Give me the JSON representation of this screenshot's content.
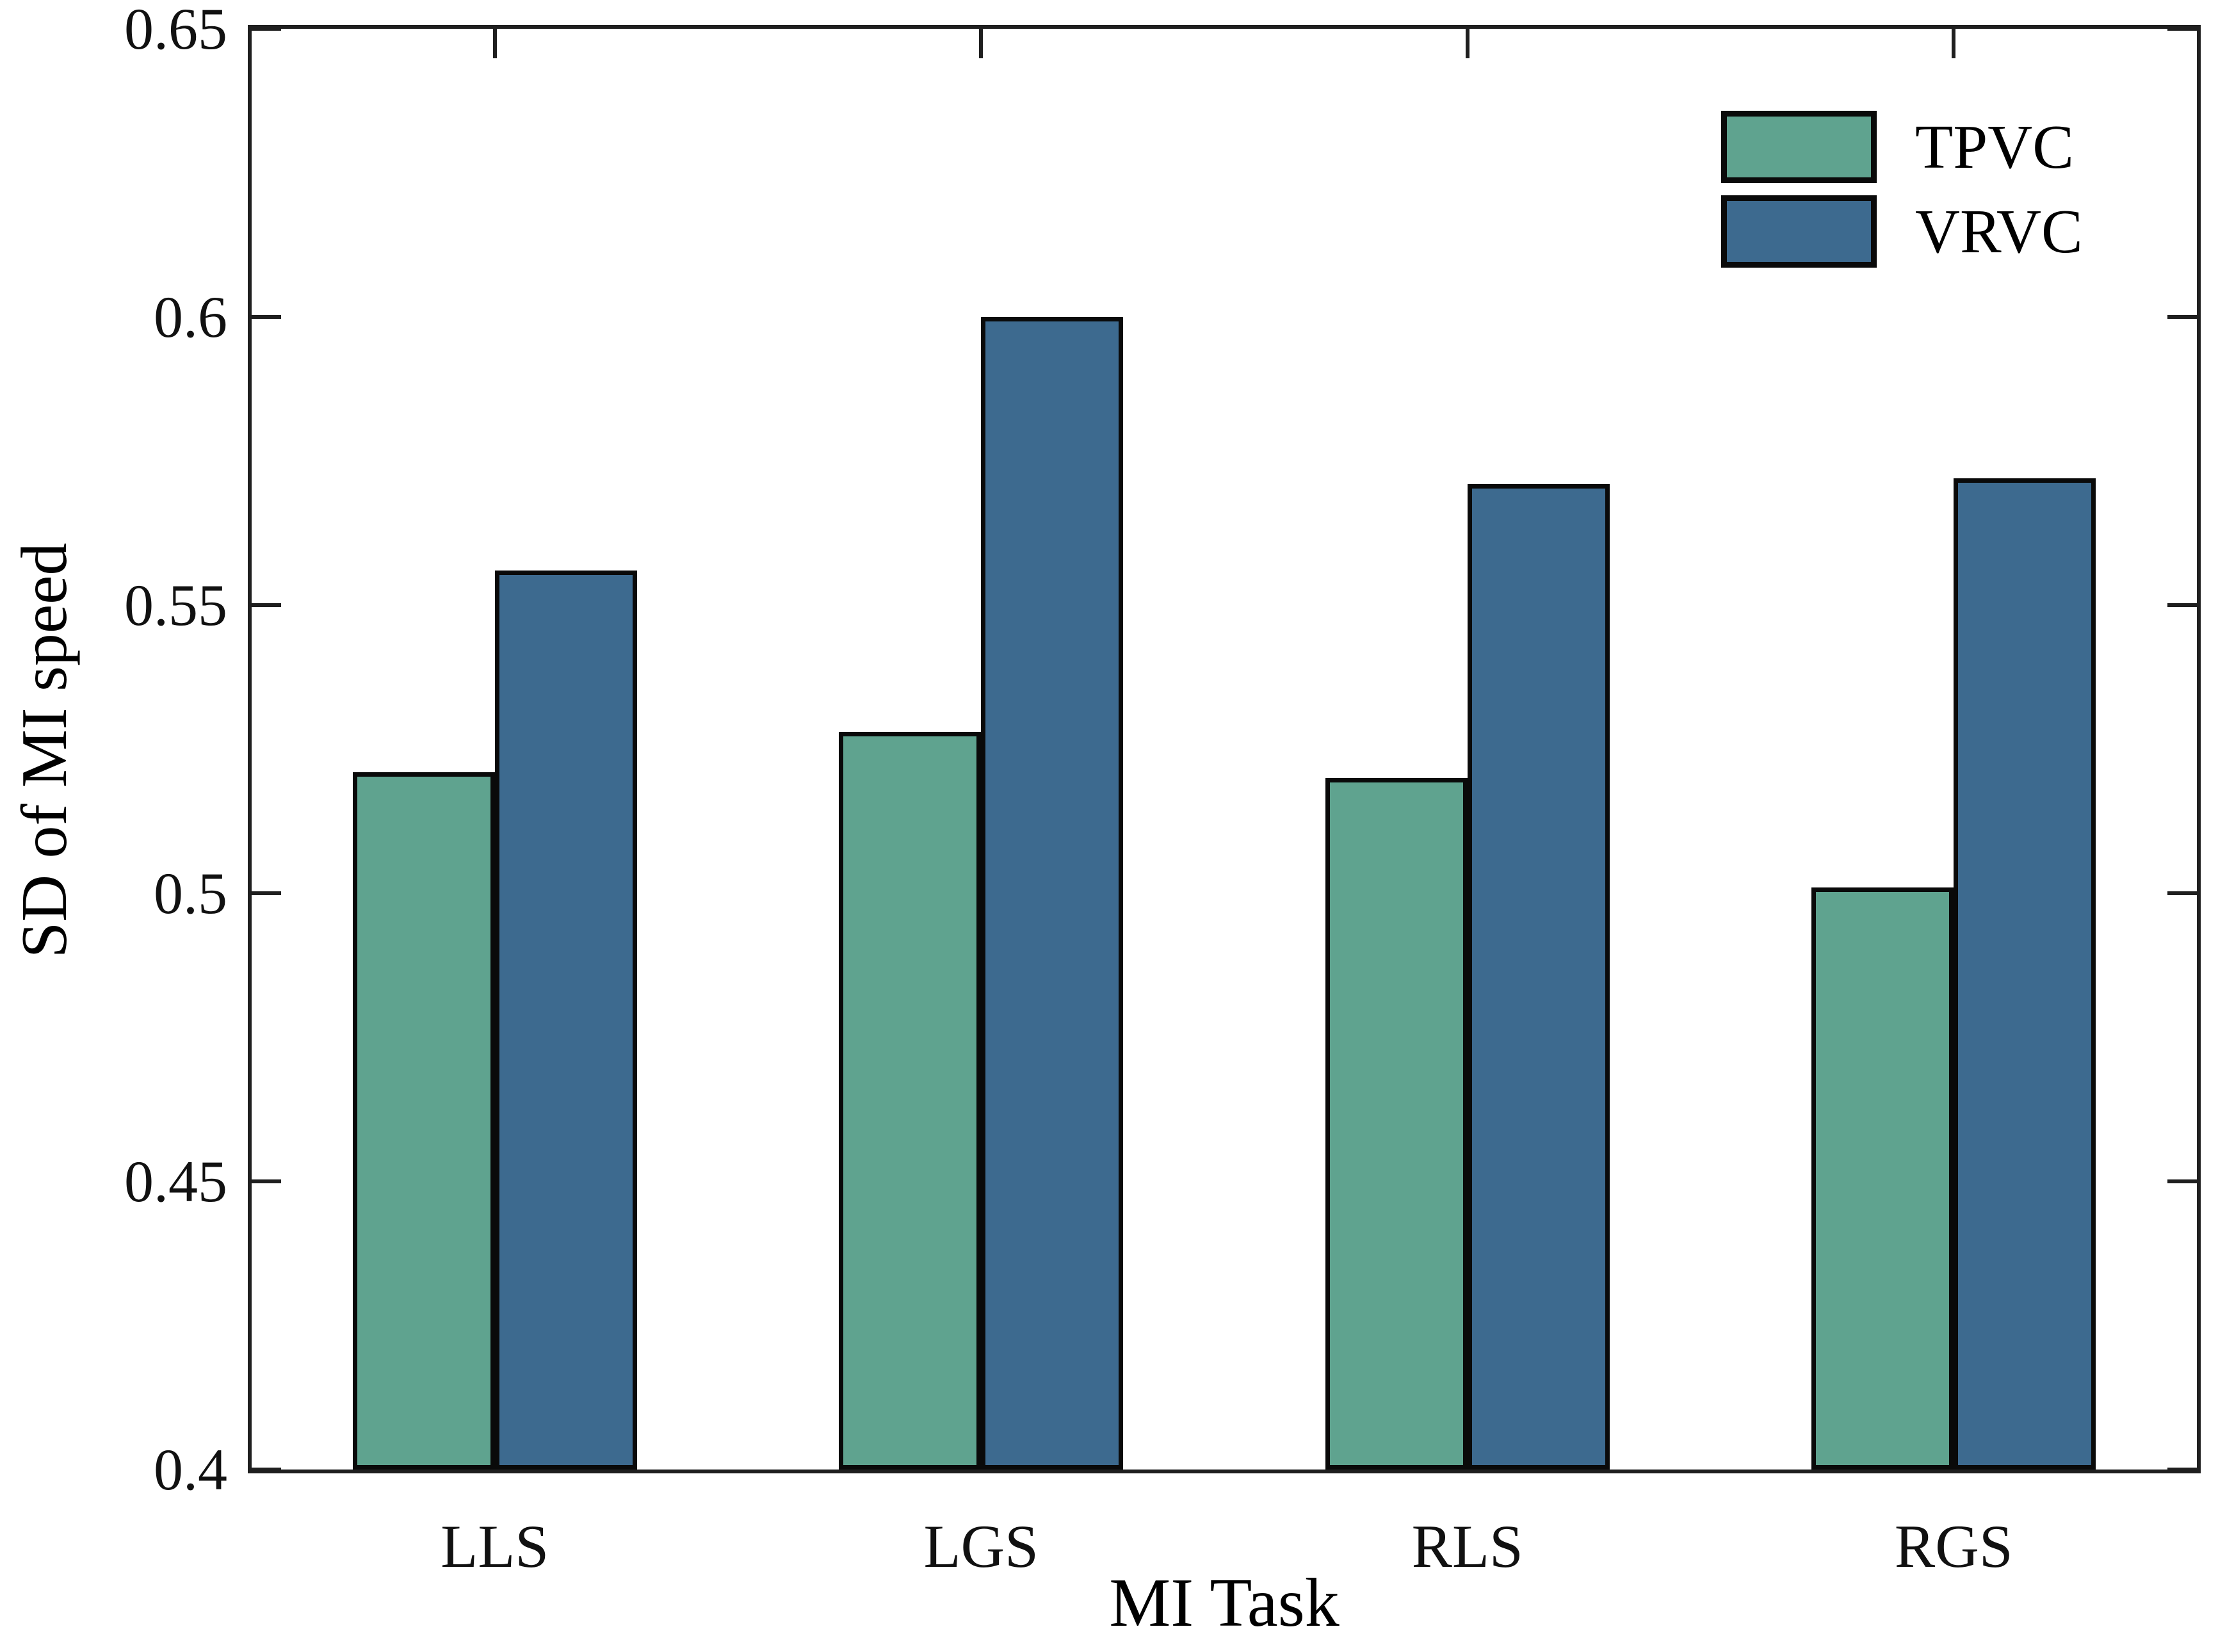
{
  "chart_data": {
    "type": "bar",
    "title": "",
    "xlabel": "MI Task",
    "ylabel": "SD of MI speed",
    "categories": [
      "LLS",
      "LGS",
      "RLS",
      "RGS"
    ],
    "series": [
      {
        "name": "TPVC",
        "color": "#5fa38f",
        "values": [
          0.521,
          0.528,
          0.52,
          0.501
        ]
      },
      {
        "name": "VRVC",
        "color": "#3d6a8f",
        "values": [
          0.556,
          0.6,
          0.571,
          0.572
        ]
      }
    ],
    "ylim": [
      0.4,
      0.65
    ],
    "yticks": [
      0.4,
      0.45,
      0.5,
      0.55,
      0.6,
      0.65
    ],
    "ytick_labels": [
      "0.4",
      "0.45",
      "0.5",
      "0.55",
      "0.6",
      "0.65"
    ],
    "grid": false,
    "legend_position": "top-right",
    "bar_edge_color": "#0a0a0a",
    "axis_color": "#1f1f1f",
    "background_color": "#ffffff"
  }
}
